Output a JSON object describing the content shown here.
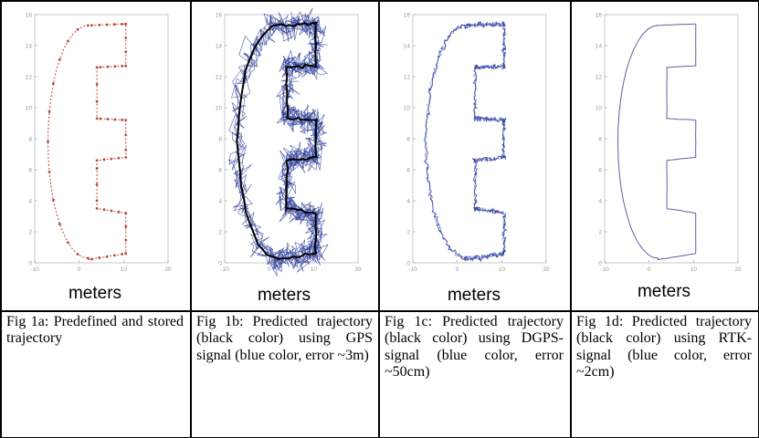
{
  "panels": [
    {
      "xlabel": "meters",
      "caption": "Fig 1a: Predefined and stored trajectory",
      "style": "dotted-red",
      "color": "#b8473a"
    },
    {
      "xlabel": "meters",
      "caption": "Fig 1b: Predicted trajectory (black color) using GPS signal (blue color, error ~3m)",
      "style": "noisy-gps",
      "color": "#2f3f9a"
    },
    {
      "xlabel": "meters",
      "caption": "Fig 1c: Predicted trajectory (black color) using DGPS-signal (blue color, error ~50cm)",
      "style": "dgps",
      "color": "#3a4aa8"
    },
    {
      "xlabel": "meters",
      "caption": "Fig 1d: Predicted trajectory (black color) using RTK-signal (blue color, error ~2cm)",
      "style": "rtk",
      "color": "#6a5aa0"
    }
  ],
  "chart_data": [
    {
      "type": "line",
      "xlabel": "meters",
      "ylim": [
        0,
        16
      ],
      "xlim": [
        -10,
        20
      ],
      "yticks": [
        "0",
        "2",
        "4",
        "6",
        "8",
        "10",
        "12",
        "14",
        "16"
      ],
      "xticks": [
        "-10",
        "0",
        "10",
        "20"
      ]
    },
    {
      "type": "line",
      "xlabel": "meters",
      "ylim": [
        0,
        16
      ],
      "xlim": [
        -10,
        20
      ],
      "yticks": [
        "0",
        "2",
        "4",
        "6",
        "8",
        "10",
        "12",
        "14",
        "16"
      ],
      "xticks": [
        "-10",
        "0",
        "10",
        "20"
      ]
    },
    {
      "type": "line",
      "xlabel": "meters",
      "ylim": [
        0,
        16
      ],
      "xlim": [
        -10,
        20
      ],
      "yticks": [
        "0",
        "2",
        "4",
        "6",
        "8",
        "10",
        "12",
        "14",
        "16"
      ],
      "xticks": [
        "-10",
        "0",
        "10",
        "20"
      ]
    },
    {
      "type": "line",
      "xlabel": "meters",
      "ylim": [
        0,
        16
      ],
      "xlim": [
        -10,
        20
      ],
      "yticks": [
        "0",
        "2",
        "4",
        "6",
        "8",
        "10",
        "12",
        "14",
        "16"
      ],
      "xticks": [
        "-10",
        "0",
        "10",
        "20"
      ]
    }
  ]
}
